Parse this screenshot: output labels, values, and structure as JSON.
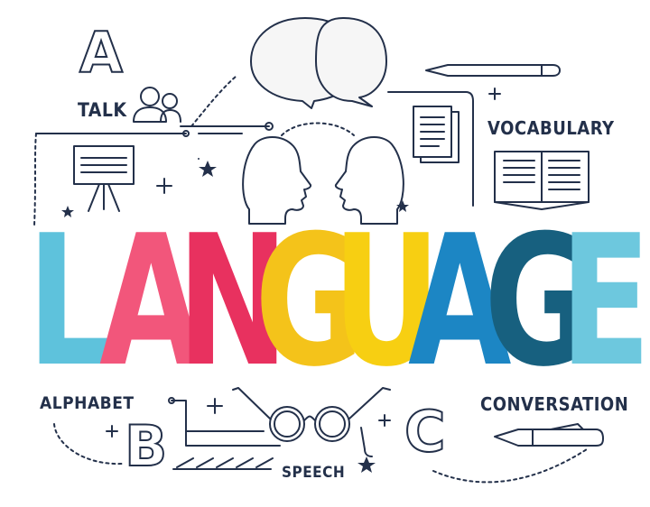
{
  "letters": {
    "a": "A",
    "b": "B",
    "c": "C"
  },
  "labels": {
    "talk": "TALK",
    "vocabulary": "VOCABULARY",
    "alphabet": "ALPHABET",
    "speech": "SPEECH",
    "conversation": "CONVERSATION"
  },
  "title": {
    "letters": [
      "L",
      "A",
      "N",
      "G",
      "U",
      "A",
      "G",
      "E"
    ],
    "colors": [
      "#5ec2dc",
      "#f2567b",
      "#e8315f",
      "#f4c31a",
      "#f7cf12",
      "#1c86c4",
      "#17607f",
      "#6dc8de"
    ]
  },
  "colors": {
    "ink": "#23304a",
    "background": "#ffffff"
  }
}
